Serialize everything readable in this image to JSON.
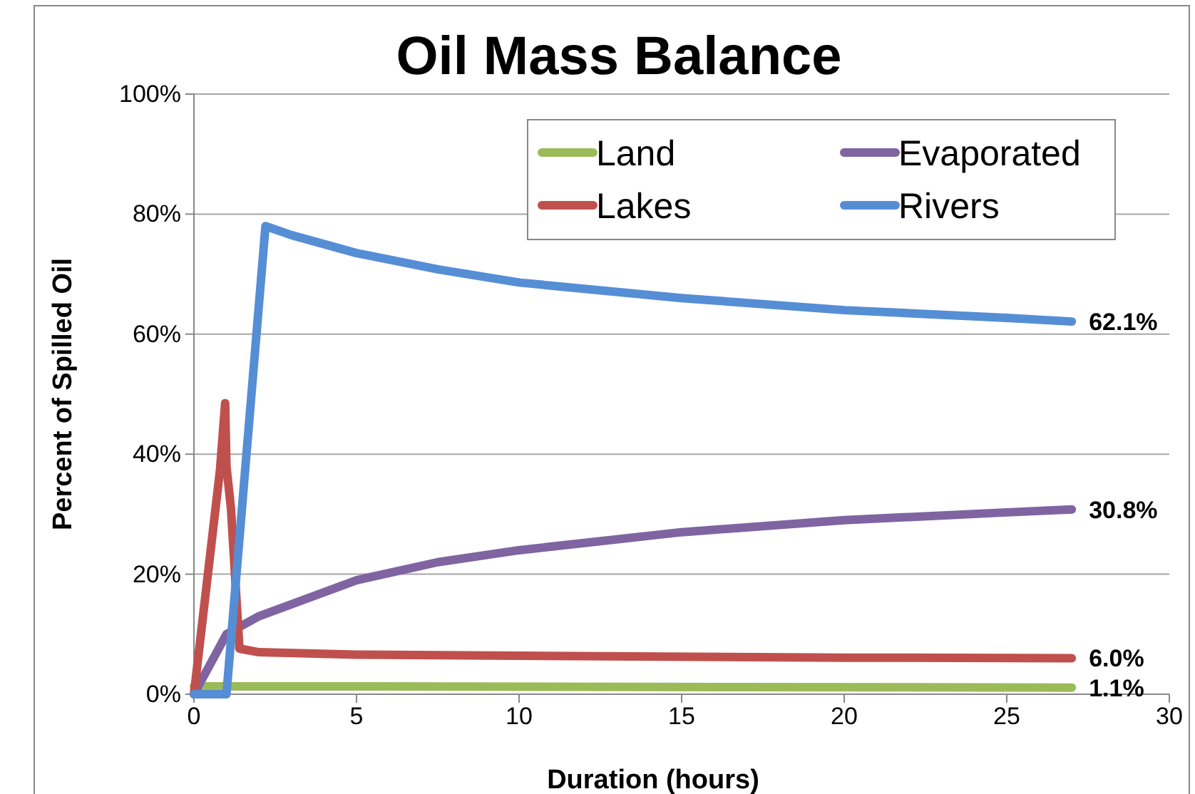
{
  "chart_data": {
    "type": "line",
    "title": "Oil Mass Balance",
    "xlabel": "Duration (hours)",
    "ylabel": "Percent of Spilled Oil",
    "xlim": [
      0,
      30
    ],
    "xticks": [
      0,
      5,
      10,
      15,
      20,
      25,
      30
    ],
    "ylim": [
      0,
      100
    ],
    "yticks": [
      {
        "value": 0,
        "label": "0%"
      },
      {
        "value": 20,
        "label": "20%"
      },
      {
        "value": 40,
        "label": "40%"
      },
      {
        "value": 60,
        "label": "60%"
      },
      {
        "value": 80,
        "label": "80%"
      },
      {
        "value": 100,
        "label": "100%"
      }
    ],
    "grid": "y",
    "legend": "top right",
    "marker": "none",
    "line_style": "solid",
    "series": [
      {
        "name": "Land",
        "color": "#9bbb59",
        "x": [
          0,
          5,
          27
        ],
        "values": [
          1.3,
          1.3,
          1.1
        ],
        "value_labels": [
          null,
          null,
          "1.1%"
        ]
      },
      {
        "name": "Evaporated",
        "color": "#8064a2",
        "x": [
          0,
          1,
          2,
          5,
          7.5,
          10,
          15,
          20,
          25,
          27
        ],
        "values": [
          0,
          10,
          13,
          19,
          22,
          24,
          27,
          29,
          30.3,
          30.8
        ],
        "value_labels": [
          null,
          null,
          null,
          null,
          null,
          null,
          null,
          null,
          null,
          "30.8%"
        ]
      },
      {
        "name": "Lakes",
        "color": "#c0504d",
        "x": [
          0,
          0.8,
          0.96,
          1.0,
          1.14,
          1.4,
          2,
          5,
          10,
          20,
          27
        ],
        "values": [
          0,
          37.3,
          48.5,
          38,
          30.9,
          7.6,
          7,
          6.6,
          6.4,
          6.1,
          6.0
        ],
        "value_labels": [
          null,
          null,
          null,
          null,
          null,
          null,
          null,
          null,
          null,
          null,
          "6.0%"
        ]
      },
      {
        "name": "Rivers",
        "color": "#558ed5",
        "x": [
          0,
          1,
          2.2,
          3,
          5,
          7.5,
          10,
          15,
          20,
          25,
          27
        ],
        "values": [
          0,
          0,
          78,
          76.5,
          73.5,
          70.8,
          68.6,
          66,
          64,
          62.7,
          62.1
        ],
        "value_labels": [
          null,
          null,
          null,
          null,
          null,
          null,
          null,
          null,
          null,
          null,
          "62.1%"
        ]
      }
    ]
  }
}
